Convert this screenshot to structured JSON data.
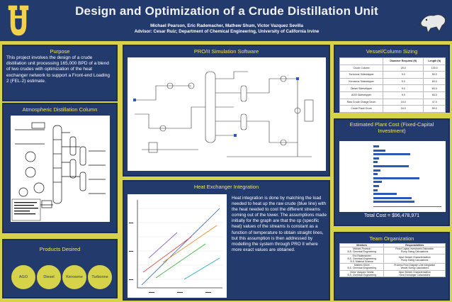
{
  "header": {
    "title": "Design and Optimization of a Crude Distillation Unit",
    "authors": "Michael Pearson, Eric Rademacher, Mathew Shum, Victor Vazquez Sevilla",
    "advisor": "Advisor: Cesar Ruiz; Department of Chemical Engineering, University of California Irvine"
  },
  "purpose": {
    "title": "Purpose",
    "body": "This project involves the design of a crude distillation unit processing 165,000 BPD of a blend of two crudes with optimization of the heat exchanger network to support a Front-end Loading 2 (FEL-2) estimate."
  },
  "atmospheric": {
    "title": "Atmospheric Distillation Column"
  },
  "products": {
    "title": "Products Desired",
    "items": [
      "AGO",
      "Diesel",
      "Kerosene",
      "Turbonne"
    ]
  },
  "proii": {
    "title": "PRO/II Simulation Software"
  },
  "heat_exchanger": {
    "title": "Heat Exchanger Integration",
    "body": "Heat integration is done by matching the load needed to heat up the raw crude (blue line) with the heat needed to cool the different streams coming out of the tower. The assumptions made initially for the graph are that the cp (specific heat) values of the streams is constant as a function of temperature to obtain straight lines, but this assumption is then addressed by modelling the system through PRO II where more exact values are obtained."
  },
  "vessel": {
    "title": "Vessel/Column Sizing",
    "headers": [
      "",
      "Diameter Required (ft)",
      "Length (ft)"
    ],
    "rows": [
      [
        "Crude Column",
        "25.0",
        "130.0"
      ],
      [
        "Turbonne Sidestripper",
        "9.0",
        "50.0"
      ],
      [
        "Kerosene Sidestripper",
        "9.0",
        "60.0"
      ],
      [
        "Diesel Sidestripper",
        "9.0",
        "60.0"
      ],
      [
        "AGO Sidestripper",
        "9.0",
        "60.0"
      ],
      [
        "Raw Crude Charge Drum",
        "15.0",
        "47.0"
      ],
      [
        "Crude Flash Drum",
        "16.0",
        "59.0"
      ]
    ]
  },
  "cost": {
    "title": "Estimated Plant Cost (Fixed-Capital Investment)",
    "total": "Total Cost = $96,478,971",
    "chart_data": {
      "type": "bar",
      "categories": [
        "",
        "",
        "",
        "",
        "",
        "",
        "",
        "",
        "",
        "",
        "",
        "",
        "",
        "",
        ""
      ],
      "values": [
        4,
        9,
        27,
        4,
        3,
        26,
        5,
        3,
        34,
        6,
        4,
        3,
        17,
        28,
        30
      ],
      "xlim": [
        0,
        50
      ]
    }
  },
  "team": {
    "title": "Team Organization",
    "headers": [
      "Members",
      "Responsibilities"
    ],
    "rows": [
      [
        "Michael Pearson\nB.S. Chemical Engineering",
        "Fixed Capital Investment Estimation\nPump Sizing Calculations"
      ],
      [
        "Eric Rademacher\nB.S. Chemical Engineering\nB.S. Material Science",
        "Input Stream Characterization\nPump Sizing Calculations"
      ],
      [
        "Mathew Shum\nB.S. Chemical Engineering",
        "Process Flow Diagram Unit Integration\nVessel Sizing Calculations"
      ],
      [
        "Victor Vazquez Sevilla\nB.S. Chemical Engineering",
        "Input Stream Characterization\nHeat Exchanger Calculations"
      ]
    ]
  }
}
